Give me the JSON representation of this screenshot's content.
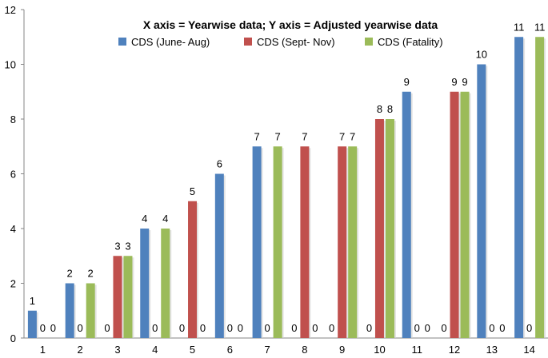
{
  "chart_data": {
    "type": "bar",
    "title": "X axis = Yearwise data; Y axis = Adjusted yearwise data",
    "categories": [
      "1",
      "2",
      "3",
      "4",
      "5",
      "6",
      "7",
      "8",
      "9",
      "10",
      "11",
      "12",
      "13",
      "14"
    ],
    "series": [
      {
        "name": "CDS (June- Aug)",
        "color": "#4f81bd",
        "values": [
          1,
          2,
          0,
          4,
          0,
          6,
          7,
          0,
          0,
          0,
          9,
          0,
          10,
          11
        ]
      },
      {
        "name": "CDS (Sept- Nov)",
        "color": "#c0504d",
        "values": [
          0,
          0,
          3,
          0,
          5,
          0,
          0,
          7,
          7,
          8,
          0,
          9,
          0,
          0
        ]
      },
      {
        "name": "CDS (Fatality)",
        "color": "#9bbb59",
        "values": [
          0,
          2,
          3,
          4,
          0,
          0,
          7,
          0,
          7,
          8,
          0,
          9,
          0,
          11
        ]
      }
    ],
    "ylim": [
      0,
      12
    ],
    "yticks": [
      0,
      2,
      4,
      6,
      8,
      10,
      12
    ],
    "legend_position": "top",
    "grid": false
  }
}
